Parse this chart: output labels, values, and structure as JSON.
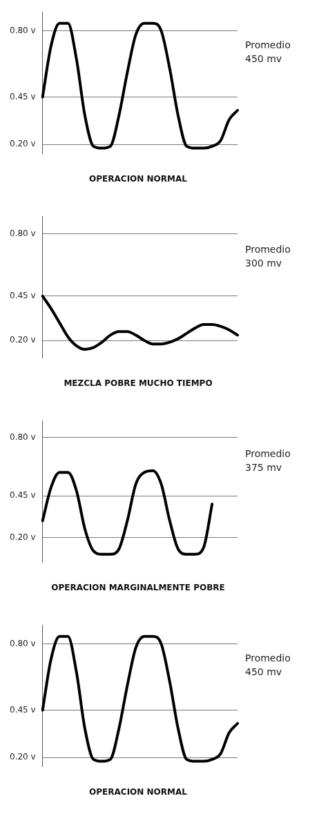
{
  "chart_data": [
    {
      "type": "line",
      "title": "OPERACION NORMAL",
      "annotations": [
        "Promedio\n450 mv"
      ],
      "categories": [
        null,
        null,
        null,
        null,
        null,
        null,
        null,
        null,
        null,
        null,
        null,
        null,
        null,
        null,
        null,
        null,
        null,
        null,
        null,
        null,
        null,
        null,
        null,
        null
      ],
      "series": [
        {
          "color": "#000000",
          "values": [
            0.45,
            0.72,
            0.84,
            0.84,
            0.65,
            0.35,
            0.19,
            0.18,
            0.19,
            0.35,
            0.58,
            0.78,
            0.84,
            0.84,
            0.8,
            0.6,
            0.35,
            0.19,
            0.18,
            0.18,
            0.19,
            0.22,
            0.33,
            0.38
          ]
        }
      ],
      "ylim": [
        0.15,
        0.9
      ],
      "yticks": [
        {
          "value": 0.2,
          "label": "0.20 v"
        },
        {
          "value": 0.45,
          "label": "0.45 v"
        },
        {
          "value": 0.8,
          "label": "0.80 v"
        }
      ],
      "grid": "y",
      "tick_labels": "y",
      "legend": false,
      "marker": "none"
    },
    {
      "type": "line",
      "title": "MEZCLA POBRE MUCHO TIEMPO",
      "annotations": [
        "Promedio\n300 mv"
      ],
      "categories": [
        null,
        null,
        null,
        null,
        null,
        null,
        null,
        null,
        null,
        null,
        null,
        null,
        null,
        null,
        null,
        null,
        null,
        null,
        null,
        null,
        null,
        null,
        null,
        null
      ],
      "series": [
        {
          "color": "#000000",
          "values": [
            0.45,
            0.38,
            0.3,
            0.22,
            0.17,
            0.15,
            0.16,
            0.19,
            0.23,
            0.25,
            0.25,
            0.23,
            0.2,
            0.18,
            0.18,
            0.19,
            0.21,
            0.24,
            0.27,
            0.29,
            0.29,
            0.28,
            0.26,
            0.23
          ]
        }
      ],
      "ylim": [
        0.1,
        0.9
      ],
      "yticks": [
        {
          "value": 0.2,
          "label": "0.20 v"
        },
        {
          "value": 0.45,
          "label": "0.45 v"
        },
        {
          "value": 0.8,
          "label": "0.80 v"
        }
      ],
      "grid": "y",
      "tick_labels": "y",
      "legend": false,
      "marker": "none"
    },
    {
      "type": "line",
      "title": "OPERACION MARGINALMENTE POBRE",
      "annotations": [
        "Promedio\n375 mv"
      ],
      "categories": [
        null,
        null,
        null,
        null,
        null,
        null,
        null,
        null,
        null,
        null,
        null,
        null,
        null,
        null,
        null,
        null,
        null,
        null,
        null,
        null,
        null,
        null,
        null,
        null
      ],
      "series": [
        {
          "color": "#000000",
          "values": [
            0.3,
            0.5,
            0.59,
            0.59,
            0.48,
            0.25,
            0.12,
            0.1,
            0.1,
            0.13,
            0.3,
            0.52,
            0.59,
            0.6,
            0.52,
            0.3,
            0.13,
            0.1,
            0.1,
            0.14,
            0.4,
            null,
            null,
            null
          ]
        }
      ],
      "ylim": [
        0.05,
        0.9
      ],
      "yticks": [
        {
          "value": 0.2,
          "label": "0.20 v"
        },
        {
          "value": 0.45,
          "label": "0.45 v"
        },
        {
          "value": 0.8,
          "label": "0.80 v"
        }
      ],
      "grid": "y",
      "tick_labels": "y",
      "legend": false,
      "marker": "none"
    },
    {
      "type": "line",
      "title": "OPERACION NORMAL",
      "annotations": [
        "Promedio\n450 mv"
      ],
      "categories": [
        null,
        null,
        null,
        null,
        null,
        null,
        null,
        null,
        null,
        null,
        null,
        null,
        null,
        null,
        null,
        null,
        null,
        null,
        null,
        null,
        null,
        null,
        null,
        null
      ],
      "series": [
        {
          "color": "#000000",
          "values": [
            0.45,
            0.72,
            0.84,
            0.84,
            0.65,
            0.35,
            0.19,
            0.18,
            0.19,
            0.35,
            0.58,
            0.78,
            0.84,
            0.84,
            0.8,
            0.6,
            0.35,
            0.19,
            0.18,
            0.18,
            0.19,
            0.22,
            0.33,
            0.38
          ]
        }
      ],
      "ylim": [
        0.15,
        0.9
      ],
      "yticks": [
        {
          "value": 0.2,
          "label": "0.20 v"
        },
        {
          "value": 0.45,
          "label": "0.45 v"
        },
        {
          "value": 0.8,
          "label": "0.80 v"
        }
      ],
      "grid": "y",
      "tick_labels": "y",
      "legend": false,
      "marker": "none"
    }
  ]
}
